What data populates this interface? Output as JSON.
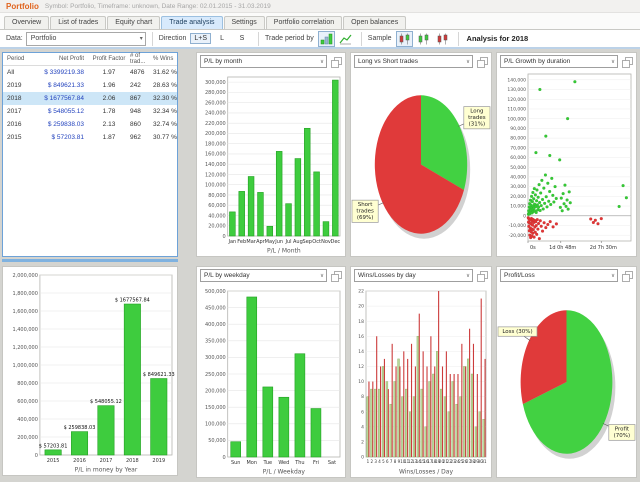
{
  "header": {
    "title": "Portfolio",
    "subtitle": "Symbol: Portfolio, Timeframe: unknown, Date Range: 02.01.2015 - 31.03.2019"
  },
  "tabs": {
    "items": [
      {
        "label": "Overview",
        "active": false
      },
      {
        "label": "List of trades",
        "active": false
      },
      {
        "label": "Equity chart",
        "active": false
      },
      {
        "label": "Trade analysis",
        "active": true
      },
      {
        "label": "Settings",
        "active": false
      },
      {
        "label": "Portfolio correlation",
        "active": false
      },
      {
        "label": "Open balances",
        "active": false
      }
    ]
  },
  "toolbar": {
    "data_label": "Data:",
    "data_value": "Portfolio",
    "direction_label": "Direction",
    "direction_buttons": [
      {
        "label": "L+S",
        "active": true
      },
      {
        "label": "L",
        "active": false
      },
      {
        "label": "S",
        "active": false
      }
    ],
    "trade_period_label": "Trade period by",
    "trade_period_icons": [
      "period-open-chart-icon",
      "period-close-chart-icon"
    ],
    "sample_label": "Sample",
    "sample_icons": [
      "sample-all-candles-icon",
      "sample-profit-candles-icon",
      "sample-loss-candles-icon"
    ],
    "analysis_label": "Analysis for 2018"
  },
  "icons": {
    "dropdown_arrow": "▾",
    "select_arrow": "∨",
    "copy_icon": "copy-chart-icon"
  },
  "colors": {
    "accent_orange": "#e0641e",
    "profit_green": "#3ecc3e",
    "loss_red": "#e03a3a",
    "selection_blue": "#cde6f7",
    "wins_green": "#b9d89a"
  },
  "table": {
    "headers": [
      "Period",
      "Net Profit",
      "Profit Factor",
      "# of trad...",
      "% Wins"
    ],
    "rows": [
      {
        "period": "All",
        "net_profit": "$ 3399219.38",
        "profit_factor": "1.97",
        "trades": "4876",
        "wins": "31.62 %",
        "selected": false
      },
      {
        "period": "2019",
        "net_profit": "$ 849621.33",
        "profit_factor": "1.96",
        "trades": "242",
        "wins": "28.63 %",
        "selected": false
      },
      {
        "period": "2018",
        "net_profit": "$ 1677567.84",
        "profit_factor": "2.06",
        "trades": "867",
        "wins": "32.30 %",
        "selected": true
      },
      {
        "period": "2017",
        "net_profit": "$ 548055.12",
        "profit_factor": "1.78",
        "trades": "948",
        "wins": "32.34 %",
        "selected": false
      },
      {
        "period": "2016",
        "net_profit": "$ 259838.03",
        "profit_factor": "2.13",
        "trades": "860",
        "wins": "32.74 %",
        "selected": false
      },
      {
        "period": "2015",
        "net_profit": "$ 57203.81",
        "profit_factor": "1.87",
        "trades": "962",
        "wins": "30.77 %",
        "selected": false
      }
    ]
  },
  "chart_data": [
    {
      "type": "bar",
      "title": "P/L by month",
      "categories": [
        "Jan",
        "Feb",
        "Mar",
        "Apr",
        "May",
        "Jun",
        "Jul",
        "Aug",
        "Sep",
        "Oct",
        "Nov",
        "Dec"
      ],
      "values": [
        47000,
        87000,
        116000,
        85000,
        19000,
        165000,
        63000,
        151000,
        210000,
        125000,
        28000,
        304000
      ],
      "xlabel": "P/L / Month",
      "ylabel": "",
      "ylim": [
        0,
        310000
      ],
      "ytick": 20000,
      "bar_color": "#3ecc3e"
    },
    {
      "type": "pie",
      "title": "Long vs Short trades",
      "slices": [
        {
          "label": "Long trades (31%)",
          "value": 31,
          "color": "#42d142"
        },
        {
          "label": "Short trades (69%)",
          "value": 69,
          "color": "#e03a3a"
        }
      ]
    },
    {
      "type": "scatter",
      "title": "P/L Growth by duration",
      "xlabel": "Duration",
      "ylabel": "P/L",
      "xlim": [
        0,
        78
      ],
      "ylim": [
        -26000,
        146000
      ],
      "ytick": 10000,
      "xticks": [
        {
          "pos": 0,
          "label": "0s"
        },
        {
          "pos": 24.8,
          "label": "1d 0h 48m"
        },
        {
          "pos": 55.5,
          "label": "2d 7h 30m"
        }
      ],
      "series": [
        {
          "name": "profit-trades",
          "color": "#35c935",
          "points": [
            [
              0.3,
              1500
            ],
            [
              0.5,
              5200
            ],
            [
              0.7,
              2800
            ],
            [
              0.9,
              9000
            ],
            [
              1.1,
              4000
            ],
            [
              1.3,
              12500
            ],
            [
              1.5,
              2200
            ],
            [
              1.7,
              7400
            ],
            [
              1.9,
              16000
            ],
            [
              2.1,
              3600
            ],
            [
              2.3,
              10800
            ],
            [
              2.5,
              5800
            ],
            [
              2.7,
              20000
            ],
            [
              2.9,
              8200
            ],
            [
              3.1,
              3000
            ],
            [
              3.3,
              14500
            ],
            [
              3.5,
              6600
            ],
            [
              3.7,
              24000
            ],
            [
              3.9,
              10000
            ],
            [
              4.1,
              4400
            ],
            [
              4.3,
              17500
            ],
            [
              4.5,
              7800
            ],
            [
              4.8,
              28000
            ],
            [
              5.0,
              12000
            ],
            [
              5.3,
              5000
            ],
            [
              5.6,
              21500
            ],
            [
              5.9,
              9400
            ],
            [
              6.2,
              3300
            ],
            [
              6.5,
              15500
            ],
            [
              6.8,
              26500
            ],
            [
              7.1,
              11200
            ],
            [
              7.4,
              6100
            ],
            [
              7.7,
              19000
            ],
            [
              8.0,
              8800
            ],
            [
              8.4,
              32000
            ],
            [
              8.8,
              13600
            ],
            [
              9.2,
              5400
            ],
            [
              9.6,
              23500
            ],
            [
              10.0,
              10400
            ],
            [
              10.5,
              36500
            ],
            [
              11.0,
              16800
            ],
            [
              11.5,
              7000
            ],
            [
              12.0,
              28500
            ],
            [
              12.6,
              12800
            ],
            [
              13.2,
              42000
            ],
            [
              13.8,
              19600
            ],
            [
              14.4,
              9200
            ],
            [
              15.0,
              33500
            ],
            [
              15.7,
              15000
            ],
            [
              16.4,
              25000
            ],
            [
              17.2,
              11600
            ],
            [
              18.0,
              38500
            ],
            [
              18.8,
              21000
            ],
            [
              19.6,
              14200
            ],
            [
              20.5,
              30000
            ],
            [
              21.4,
              17800
            ],
            [
              9.0,
              130000
            ],
            [
              35.5,
              138000
            ],
            [
              30.0,
              100000
            ],
            [
              13.5,
              82000
            ],
            [
              6.0,
              65000
            ],
            [
              16.5,
              62000
            ],
            [
              24.0,
              57500
            ],
            [
              24.5,
              8600
            ],
            [
              25.2,
              18200
            ],
            [
              25.9,
              5200
            ],
            [
              26.6,
              22800
            ],
            [
              27.3,
              12400
            ],
            [
              28.0,
              31500
            ],
            [
              28.8,
              9600
            ],
            [
              29.6,
              16200
            ],
            [
              30.4,
              6800
            ],
            [
              31.2,
              24600
            ],
            [
              32.0,
              13400
            ],
            [
              72.0,
              31000
            ],
            [
              74.5,
              18500
            ],
            [
              69.0,
              9500
            ]
          ]
        },
        {
          "name": "loss-trades",
          "color": "#e03535",
          "points": [
            [
              0.2,
              -2000
            ],
            [
              0.4,
              -6500
            ],
            [
              0.6,
              -11000
            ],
            [
              0.8,
              -3400
            ],
            [
              1.0,
              -15500
            ],
            [
              1.2,
              -7600
            ],
            [
              1.4,
              -20000
            ],
            [
              1.6,
              -4400
            ],
            [
              1.8,
              -12800
            ],
            [
              2.0,
              -22500
            ],
            [
              2.2,
              -8400
            ],
            [
              2.4,
              -16500
            ],
            [
              2.6,
              -2800
            ],
            [
              2.8,
              -13600
            ],
            [
              3.0,
              -21000
            ],
            [
              3.2,
              -5600
            ],
            [
              3.4,
              -9600
            ],
            [
              3.6,
              -18000
            ],
            [
              3.8,
              -3800
            ],
            [
              4.0,
              -14400
            ],
            [
              4.3,
              -7000
            ],
            [
              4.6,
              -22000
            ],
            [
              4.9,
              -4800
            ],
            [
              5.2,
              -11600
            ],
            [
              5.5,
              -17000
            ],
            [
              5.8,
              -6200
            ],
            [
              6.2,
              -10200
            ],
            [
              6.6,
              -19200
            ],
            [
              7.0,
              -4000
            ],
            [
              7.5,
              -13800
            ],
            [
              8.0,
              -8000
            ],
            [
              8.6,
              -23500
            ],
            [
              9.3,
              -5200
            ],
            [
              10.0,
              -10800
            ],
            [
              11.0,
              -15800
            ],
            [
              12.2,
              -7200
            ],
            [
              13.5,
              -12200
            ],
            [
              15.0,
              -9000
            ],
            [
              16.8,
              -6000
            ],
            [
              19.0,
              -11400
            ],
            [
              21.5,
              -8400
            ],
            [
              47.5,
              -3400
            ],
            [
              49.5,
              -7000
            ],
            [
              51.0,
              -4600
            ],
            [
              53.0,
              -8200
            ],
            [
              55.5,
              -3000
            ]
          ]
        }
      ]
    },
    {
      "type": "bar",
      "title": "P/L in money by Year",
      "categories": [
        "2015",
        "2016",
        "2017",
        "2018",
        "2019"
      ],
      "values": [
        57203.81,
        259838.03,
        548055.12,
        1677567.84,
        849621.33
      ],
      "bar_labels": [
        "$ 57203.81",
        "$ 259838.03",
        "$ 548055.12",
        "$ 1677567.84",
        "$ 849621.33"
      ],
      "xlabel": "P/L in money by Year",
      "ylabel": "",
      "ylim": [
        0,
        2000000
      ],
      "ytick": 200000,
      "bar_color": "#3ecc3e"
    },
    {
      "type": "bar",
      "title": "P/L by weekday",
      "categories": [
        "Sun",
        "Mon",
        "Tue",
        "Wed",
        "Thu",
        "Fri",
        "Sat"
      ],
      "values": [
        46000,
        482000,
        211000,
        180000,
        311000,
        146000,
        0
      ],
      "xlabel": "P/L / Weekday",
      "ylabel": "",
      "ylim": [
        0,
        500000
      ],
      "ytick": 50000,
      "bar_color": "#3ecc3e"
    },
    {
      "type": "grouped_bar",
      "title": "Wins/Losses by day",
      "categories": [
        "1",
        "2",
        "3",
        "4",
        "5",
        "6",
        "7",
        "8",
        "9",
        "10",
        "11",
        "12",
        "13",
        "14",
        "15",
        "16",
        "17",
        "18",
        "19",
        "20",
        "21",
        "22",
        "23",
        "24",
        "25",
        "26",
        "27",
        "28",
        "29",
        "30",
        "31"
      ],
      "xlabel": "Wins/Losses / Day",
      "ylim": [
        0,
        22
      ],
      "ytick": 2,
      "series": [
        {
          "name": "Wins",
          "color": "#b9d89a",
          "stroke": "#86ab60",
          "values": [
            8,
            9,
            9,
            9,
            12,
            10,
            7,
            10,
            13,
            8,
            9,
            6,
            8,
            16,
            9,
            4,
            10,
            11,
            14,
            9,
            8,
            6,
            10,
            7,
            8,
            12,
            13,
            11,
            4,
            6,
            5
          ]
        },
        {
          "name": "Losses",
          "color": "#cc3b3b",
          "stroke": "#a82e2e",
          "values": [
            10,
            10,
            16,
            12,
            13,
            9,
            15,
            12,
            12,
            14,
            13,
            15,
            12,
            19,
            14,
            12,
            16,
            12,
            22,
            12,
            14,
            11,
            11,
            11,
            15,
            12,
            17,
            15,
            11,
            21,
            13
          ]
        }
      ]
    },
    {
      "type": "pie",
      "title": "Profit/Loss",
      "slices": [
        {
          "label": "Profit (70%)",
          "value": 70,
          "color": "#42d142"
        },
        {
          "label": "Loss (30%)",
          "value": 30,
          "color": "#e03a3a"
        }
      ]
    }
  ]
}
